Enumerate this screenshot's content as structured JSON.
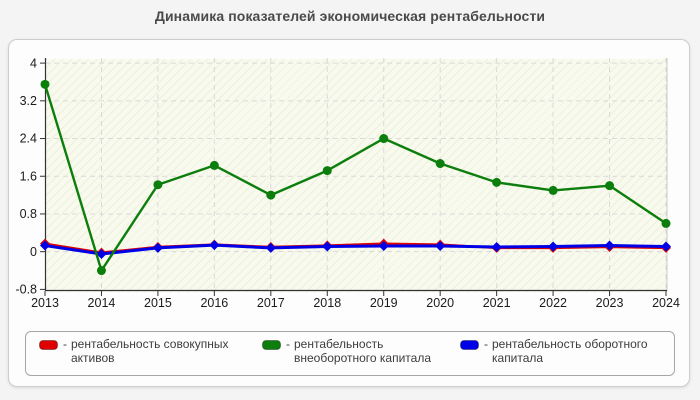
{
  "title": "Динамика показателей экономическая рентабельности",
  "chart_data": {
    "type": "line",
    "title": "Динамика показателей экономическая рентабельности",
    "x": [
      2013,
      2014,
      2015,
      2016,
      2017,
      2018,
      2019,
      2020,
      2021,
      2022,
      2023,
      2024
    ],
    "xlabel": "",
    "ylabel": "",
    "ylim": [
      -0.8,
      4
    ],
    "yticks": [
      -0.8,
      0,
      0.8,
      1.6,
      2.4,
      3.2,
      4
    ],
    "ytick_labels": [
      "-0.8",
      "0",
      "0.8",
      "1.6",
      "2.4",
      "3.2",
      "4"
    ],
    "grid": true,
    "legend_position": "bottom",
    "plot_bg_color": "#f9faee",
    "draw_order": [
      0,
      2,
      1
    ],
    "series": [
      {
        "name": "рентабельность совокупных активов",
        "color": "#e00000",
        "marker": "diamond",
        "line_style": "solid",
        "values": [
          0.17,
          -0.02,
          0.1,
          0.15,
          0.1,
          0.13,
          0.17,
          0.15,
          0.08,
          0.08,
          0.1,
          0.08
        ]
      },
      {
        "name": "рентабельность внеоборотного капитала",
        "color": "#0b7e0b",
        "marker": "circle",
        "line_style": "solid",
        "values": [
          3.55,
          -0.4,
          1.42,
          1.83,
          1.2,
          1.72,
          2.4,
          1.87,
          1.47,
          1.3,
          1.4,
          0.6
        ]
      },
      {
        "name": "рентабельность оборотного капитала",
        "color": "#0000e6",
        "marker": "diamond",
        "line_style": "solid",
        "values": [
          0.13,
          -0.05,
          0.08,
          0.14,
          0.08,
          0.11,
          0.12,
          0.12,
          0.1,
          0.11,
          0.13,
          0.11
        ]
      }
    ]
  },
  "legend": {
    "prefix": "-",
    "items": [
      {
        "label": "рентабельность совокупных активов",
        "color": "#e00000"
      },
      {
        "label": "рентабельность внеоборотного капитала",
        "color": "#0b7e0b"
      },
      {
        "label": "рентабельность оборотного капитала",
        "color": "#0000e6"
      }
    ]
  }
}
